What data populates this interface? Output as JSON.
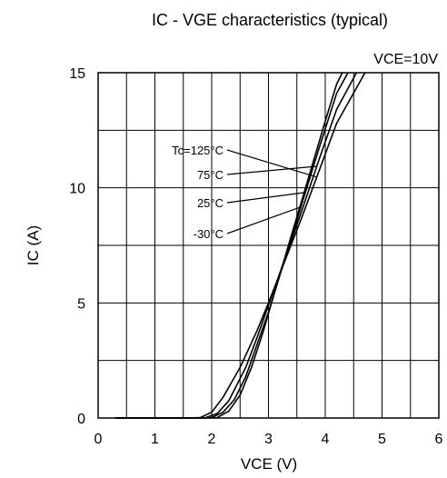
{
  "chart_data": {
    "type": "line",
    "title": "IC - VGE characteristics (typical)",
    "condition": "VCE=10V",
    "xlabel": "VCE  (V)",
    "ylabel": "IC  (A)",
    "xlim": [
      0,
      6
    ],
    "ylim": [
      0,
      15
    ],
    "grid": true,
    "x_ticks": [
      0,
      1,
      2,
      3,
      4,
      5,
      6
    ],
    "y_ticks": [
      0,
      5,
      10,
      15
    ],
    "x_tick_labels": [
      "0",
      "1",
      "2",
      "3",
      "4",
      "5",
      "6"
    ],
    "y_tick_labels": [
      "0",
      "5",
      "10",
      "15"
    ],
    "series": [
      {
        "name": "Tc=125°C",
        "x": [
          0.3,
          1.5,
          1.8,
          2.0,
          2.2,
          2.5,
          2.8,
          3.0,
          3.3,
          3.6,
          3.9,
          4.2,
          4.7
        ],
        "y": [
          0.0,
          0.0,
          0.02,
          0.25,
          0.9,
          2.2,
          3.8,
          5.0,
          6.9,
          8.8,
          10.8,
          12.8,
          15.0
        ]
      },
      {
        "name": "75°C",
        "x": [
          0.3,
          1.6,
          1.9,
          2.1,
          2.3,
          2.6,
          2.8,
          3.0,
          3.3,
          3.6,
          3.9,
          4.2,
          4.55
        ],
        "y": [
          0.0,
          0.0,
          0.02,
          0.2,
          0.75,
          2.2,
          3.5,
          4.9,
          7.0,
          9.1,
          11.3,
          13.4,
          15.0
        ]
      },
      {
        "name": "25°C",
        "x": [
          0.3,
          1.8,
          2.0,
          2.2,
          2.4,
          2.6,
          2.8,
          3.0,
          3.3,
          3.6,
          3.9,
          4.2,
          4.4
        ],
        "y": [
          0.0,
          0.0,
          0.02,
          0.25,
          0.8,
          1.8,
          3.2,
          4.6,
          7.0,
          9.4,
          11.8,
          14.1,
          15.0
        ]
      },
      {
        "name": "-30°C",
        "x": [
          0.3,
          1.9,
          2.1,
          2.3,
          2.5,
          2.7,
          2.9,
          3.1,
          3.4,
          3.7,
          4.0,
          4.2,
          4.3
        ],
        "y": [
          0.0,
          0.0,
          0.02,
          0.3,
          1.0,
          2.2,
          3.7,
          5.4,
          7.9,
          10.4,
          12.9,
          14.5,
          15.0
        ]
      }
    ],
    "annotations": [
      {
        "label": "Tc=125°C",
        "series": "Tc=125°C",
        "at_x": 3.85
      },
      {
        "label": "75°C",
        "series": "75°C",
        "at_x": 3.85
      },
      {
        "label": "25°C",
        "series": "25°C",
        "at_x": 3.65
      },
      {
        "label": "-30°C",
        "series": "-30°C",
        "at_x": 3.55
      }
    ]
  }
}
